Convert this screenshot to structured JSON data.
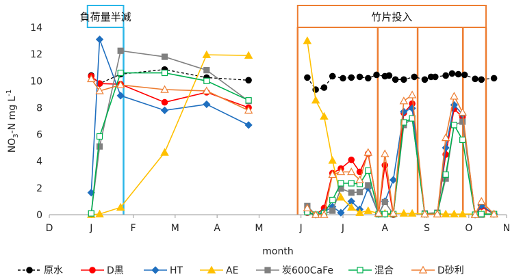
{
  "chart_data": {
    "type": "line",
    "xlabel": "month",
    "ylabel_parts": [
      "NO",
      "3",
      "-N mg L",
      "-1"
    ],
    "ylim": [
      0,
      14
    ],
    "yticks": [
      0,
      2,
      4,
      6,
      8,
      10,
      12,
      14
    ],
    "xlim": [
      0,
      10.9
    ],
    "xticks": [
      {
        "x": 0,
        "label": "D"
      },
      {
        "x": 1,
        "label": "J"
      },
      {
        "x": 2,
        "label": "F"
      },
      {
        "x": 3,
        "label": "M"
      },
      {
        "x": 4,
        "label": "A"
      },
      {
        "x": 5,
        "label": "M"
      },
      {
        "x": 6,
        "label": "J"
      },
      {
        "x": 7,
        "label": "J"
      },
      {
        "x": 8,
        "label": "A"
      },
      {
        "x": 9,
        "label": "S"
      },
      {
        "x": 10,
        "label": "O"
      },
      {
        "x": 10.9,
        "label": "N"
      }
    ],
    "grid": false,
    "legend_position": "bottom",
    "annotations": [
      {
        "text": "負荷量半減",
        "color": "#29b6e8",
        "x_start": 0.91,
        "x_end": 1.77,
        "line_x": [
          1.77
        ]
      },
      {
        "text": "竹片投入",
        "color": "#ed7d31",
        "x_start": 5.92,
        "x_end": 10.41,
        "line_x": [
          5.92,
          7.83,
          8.78,
          9.86,
          10.41
        ]
      }
    ],
    "series": [
      {
        "name": "原水",
        "color": "#000000",
        "marker": "circle",
        "fill": true,
        "dash": "4,3",
        "segments": [
          [
            [
              1.0,
              10.4
            ],
            [
              1.2,
              9.8
            ],
            [
              1.7,
              10.5
            ],
            [
              2.75,
              10.85
            ],
            [
              3.75,
              10.25
            ],
            [
              4.75,
              10.05
            ]
          ],
          [
            [
              6.15,
              10.25
            ],
            [
              6.35,
              9.35
            ],
            [
              6.55,
              9.5
            ],
            [
              6.75,
              10.35
            ],
            [
              7.0,
              10.2
            ],
            [
              7.2,
              10.25
            ],
            [
              7.4,
              10.3
            ],
            [
              7.6,
              10.2
            ],
            [
              7.8,
              10.45
            ],
            [
              8.0,
              10.35
            ],
            [
              8.1,
              10.4
            ],
            [
              8.25,
              10.1
            ],
            [
              8.45,
              10.1
            ],
            [
              8.7,
              10.3
            ],
            [
              8.95,
              10.1
            ],
            [
              9.1,
              10.3
            ],
            [
              9.2,
              10.3
            ],
            [
              9.45,
              10.4
            ],
            [
              9.6,
              10.55
            ],
            [
              9.75,
              10.5
            ],
            [
              9.9,
              10.45
            ],
            [
              10.15,
              10.15
            ],
            [
              10.3,
              10.1
            ],
            [
              10.6,
              10.2
            ]
          ]
        ]
      },
      {
        "name": "D黒",
        "color": "#ff0000",
        "marker": "circle",
        "fill": true,
        "dash": "",
        "segments": [
          [
            [
              1.0,
              10.35
            ],
            [
              1.2,
              9.8
            ],
            [
              1.7,
              9.75
            ],
            [
              2.75,
              8.4
            ],
            [
              3.75,
              9.15
            ],
            [
              4.75,
              8.0
            ]
          ],
          [
            [
              6.15,
              0.15
            ],
            [
              6.35,
              0.0
            ],
            [
              6.55,
              0.5
            ],
            [
              6.75,
              3.1
            ],
            [
              6.95,
              3.45
            ],
            [
              7.2,
              4.1
            ],
            [
              7.4,
              3.2
            ],
            [
              7.6,
              4.55
            ],
            [
              7.85,
              0.1
            ],
            [
              8.0,
              3.7
            ],
            [
              8.2,
              0.0
            ],
            [
              8.45,
              7.6
            ],
            [
              8.65,
              8.3
            ],
            [
              8.95,
              0.05
            ],
            [
              9.25,
              0.1
            ],
            [
              9.45,
              4.5
            ],
            [
              9.65,
              7.9
            ],
            [
              9.85,
              7.3
            ],
            [
              10.15,
              0.0
            ],
            [
              10.3,
              0.6
            ],
            [
              10.6,
              0.05
            ]
          ]
        ]
      },
      {
        "name": "HT",
        "color": "#1f6fbf",
        "marker": "diamond",
        "fill": true,
        "dash": "",
        "segments": [
          [
            [
              1.0,
              1.65
            ],
            [
              1.2,
              13.1
            ],
            [
              1.7,
              8.9
            ],
            [
              2.75,
              7.8
            ],
            [
              3.75,
              8.25
            ],
            [
              4.75,
              6.7
            ]
          ],
          [
            [
              6.15,
              0.2
            ],
            [
              6.35,
              0.0
            ],
            [
              6.55,
              0.2
            ],
            [
              6.75,
              0.6
            ],
            [
              6.95,
              0.15
            ],
            [
              7.2,
              1.0
            ],
            [
              7.4,
              0.4
            ],
            [
              7.6,
              2.0
            ],
            [
              7.85,
              0.05
            ],
            [
              8.0,
              1.0
            ],
            [
              8.2,
              2.6
            ],
            [
              8.45,
              7.7
            ],
            [
              8.65,
              7.95
            ],
            [
              8.95,
              0.05
            ],
            [
              9.25,
              0.1
            ],
            [
              9.45,
              5.0
            ],
            [
              9.65,
              8.2
            ],
            [
              9.85,
              7.5
            ],
            [
              10.15,
              0.0
            ],
            [
              10.3,
              0.7
            ],
            [
              10.6,
              0.05
            ]
          ]
        ]
      },
      {
        "name": "AE",
        "color": "#ffc000",
        "marker": "triangle",
        "fill": true,
        "dash": "",
        "segments": [
          [
            [
              1.0,
              0.0
            ],
            [
              1.2,
              0.05
            ],
            [
              1.7,
              0.55
            ],
            [
              2.75,
              4.65
            ],
            [
              3.75,
              11.95
            ],
            [
              4.75,
              11.9
            ]
          ],
          [
            [
              6.15,
              13.0
            ],
            [
              6.35,
              8.55
            ],
            [
              6.55,
              7.35
            ],
            [
              6.75,
              4.05
            ],
            [
              6.95,
              1.3
            ],
            [
              7.2,
              0.55
            ],
            [
              7.4,
              0.15
            ],
            [
              7.6,
              0.3
            ],
            [
              7.85,
              0.1
            ],
            [
              8.0,
              0.1
            ],
            [
              8.2,
              0.1
            ],
            [
              8.45,
              0.1
            ],
            [
              8.65,
              0.1
            ],
            [
              8.95,
              0.05
            ],
            [
              9.25,
              0.05
            ],
            [
              9.45,
              0.05
            ],
            [
              9.65,
              0.05
            ],
            [
              9.85,
              0.05
            ],
            [
              10.15,
              0.05
            ],
            [
              10.3,
              0.05
            ],
            [
              10.6,
              0.05
            ]
          ]
        ]
      },
      {
        "name": "炭600CaFe",
        "color": "#808080",
        "marker": "square",
        "fill": true,
        "dash": "",
        "segments": [
          [
            [
              1.0,
              0.1
            ],
            [
              1.2,
              5.1
            ],
            [
              1.7,
              12.25
            ],
            [
              2.75,
              11.8
            ],
            [
              3.75,
              10.8
            ],
            [
              4.75,
              8.5
            ]
          ],
          [
            [
              6.15,
              0.65
            ],
            [
              6.35,
              0.0
            ],
            [
              6.55,
              0.05
            ],
            [
              6.75,
              0.3
            ],
            [
              6.95,
              1.95
            ],
            [
              7.2,
              1.65
            ],
            [
              7.4,
              1.7
            ],
            [
              7.6,
              2.2
            ],
            [
              7.85,
              0.05
            ],
            [
              8.0,
              0.95
            ],
            [
              8.2,
              0.05
            ],
            [
              8.45,
              6.7
            ],
            [
              8.65,
              7.2
            ],
            [
              8.95,
              0.1
            ],
            [
              9.25,
              0.15
            ],
            [
              9.45,
              2.7
            ],
            [
              9.65,
              6.7
            ],
            [
              9.85,
              6.95
            ],
            [
              10.15,
              0.0
            ],
            [
              10.3,
              0.0
            ],
            [
              10.6,
              0.05
            ]
          ]
        ]
      },
      {
        "name": "混合",
        "color": "#00b050",
        "marker": "square",
        "fill": false,
        "dash": "",
        "segments": [
          [
            [
              1.0,
              0.1
            ],
            [
              1.2,
              5.85
            ],
            [
              1.7,
              10.6
            ],
            [
              2.75,
              10.6
            ],
            [
              3.75,
              10.0
            ],
            [
              4.75,
              8.55
            ]
          ],
          [
            [
              6.15,
              0.2
            ],
            [
              6.35,
              0.0
            ],
            [
              6.55,
              0.1
            ],
            [
              6.75,
              1.1
            ],
            [
              6.95,
              2.35
            ],
            [
              7.2,
              2.35
            ],
            [
              7.4,
              2.3
            ],
            [
              7.6,
              3.3
            ],
            [
              7.85,
              0.05
            ],
            [
              8.0,
              0.05
            ],
            [
              8.2,
              0.05
            ],
            [
              8.45,
              6.9
            ],
            [
              8.65,
              7.2
            ],
            [
              8.95,
              0.05
            ],
            [
              9.25,
              0.1
            ],
            [
              9.45,
              3.0
            ],
            [
              9.65,
              6.7
            ],
            [
              9.85,
              5.6
            ],
            [
              10.15,
              0.0
            ],
            [
              10.3,
              0.05
            ],
            [
              10.6,
              0.05
            ]
          ]
        ]
      },
      {
        "name": "D砂利",
        "color": "#ed7d31",
        "marker": "triangle",
        "fill": false,
        "dash": "",
        "segments": [
          [
            [
              1.0,
              10.15
            ],
            [
              1.2,
              9.25
            ],
            [
              1.7,
              9.7
            ],
            [
              2.75,
              9.35
            ],
            [
              3.75,
              9.25
            ],
            [
              4.75,
              7.8
            ]
          ],
          [
            [
              6.15,
              0.5
            ],
            [
              6.35,
              0.0
            ],
            [
              6.55,
              0.0
            ],
            [
              6.75,
              3.0
            ],
            [
              6.95,
              3.2
            ],
            [
              7.2,
              3.2
            ],
            [
              7.4,
              2.6
            ],
            [
              7.6,
              4.65
            ],
            [
              7.85,
              0.1
            ],
            [
              8.0,
              4.55
            ],
            [
              8.2,
              0.1
            ],
            [
              8.45,
              8.5
            ],
            [
              8.65,
              8.95
            ],
            [
              8.95,
              0.05
            ],
            [
              9.25,
              0.05
            ],
            [
              9.45,
              5.75
            ],
            [
              9.65,
              8.85
            ],
            [
              9.85,
              7.65
            ],
            [
              10.15,
              0.0
            ],
            [
              10.3,
              1.0
            ],
            [
              10.6,
              0.05
            ]
          ]
        ]
      }
    ]
  }
}
